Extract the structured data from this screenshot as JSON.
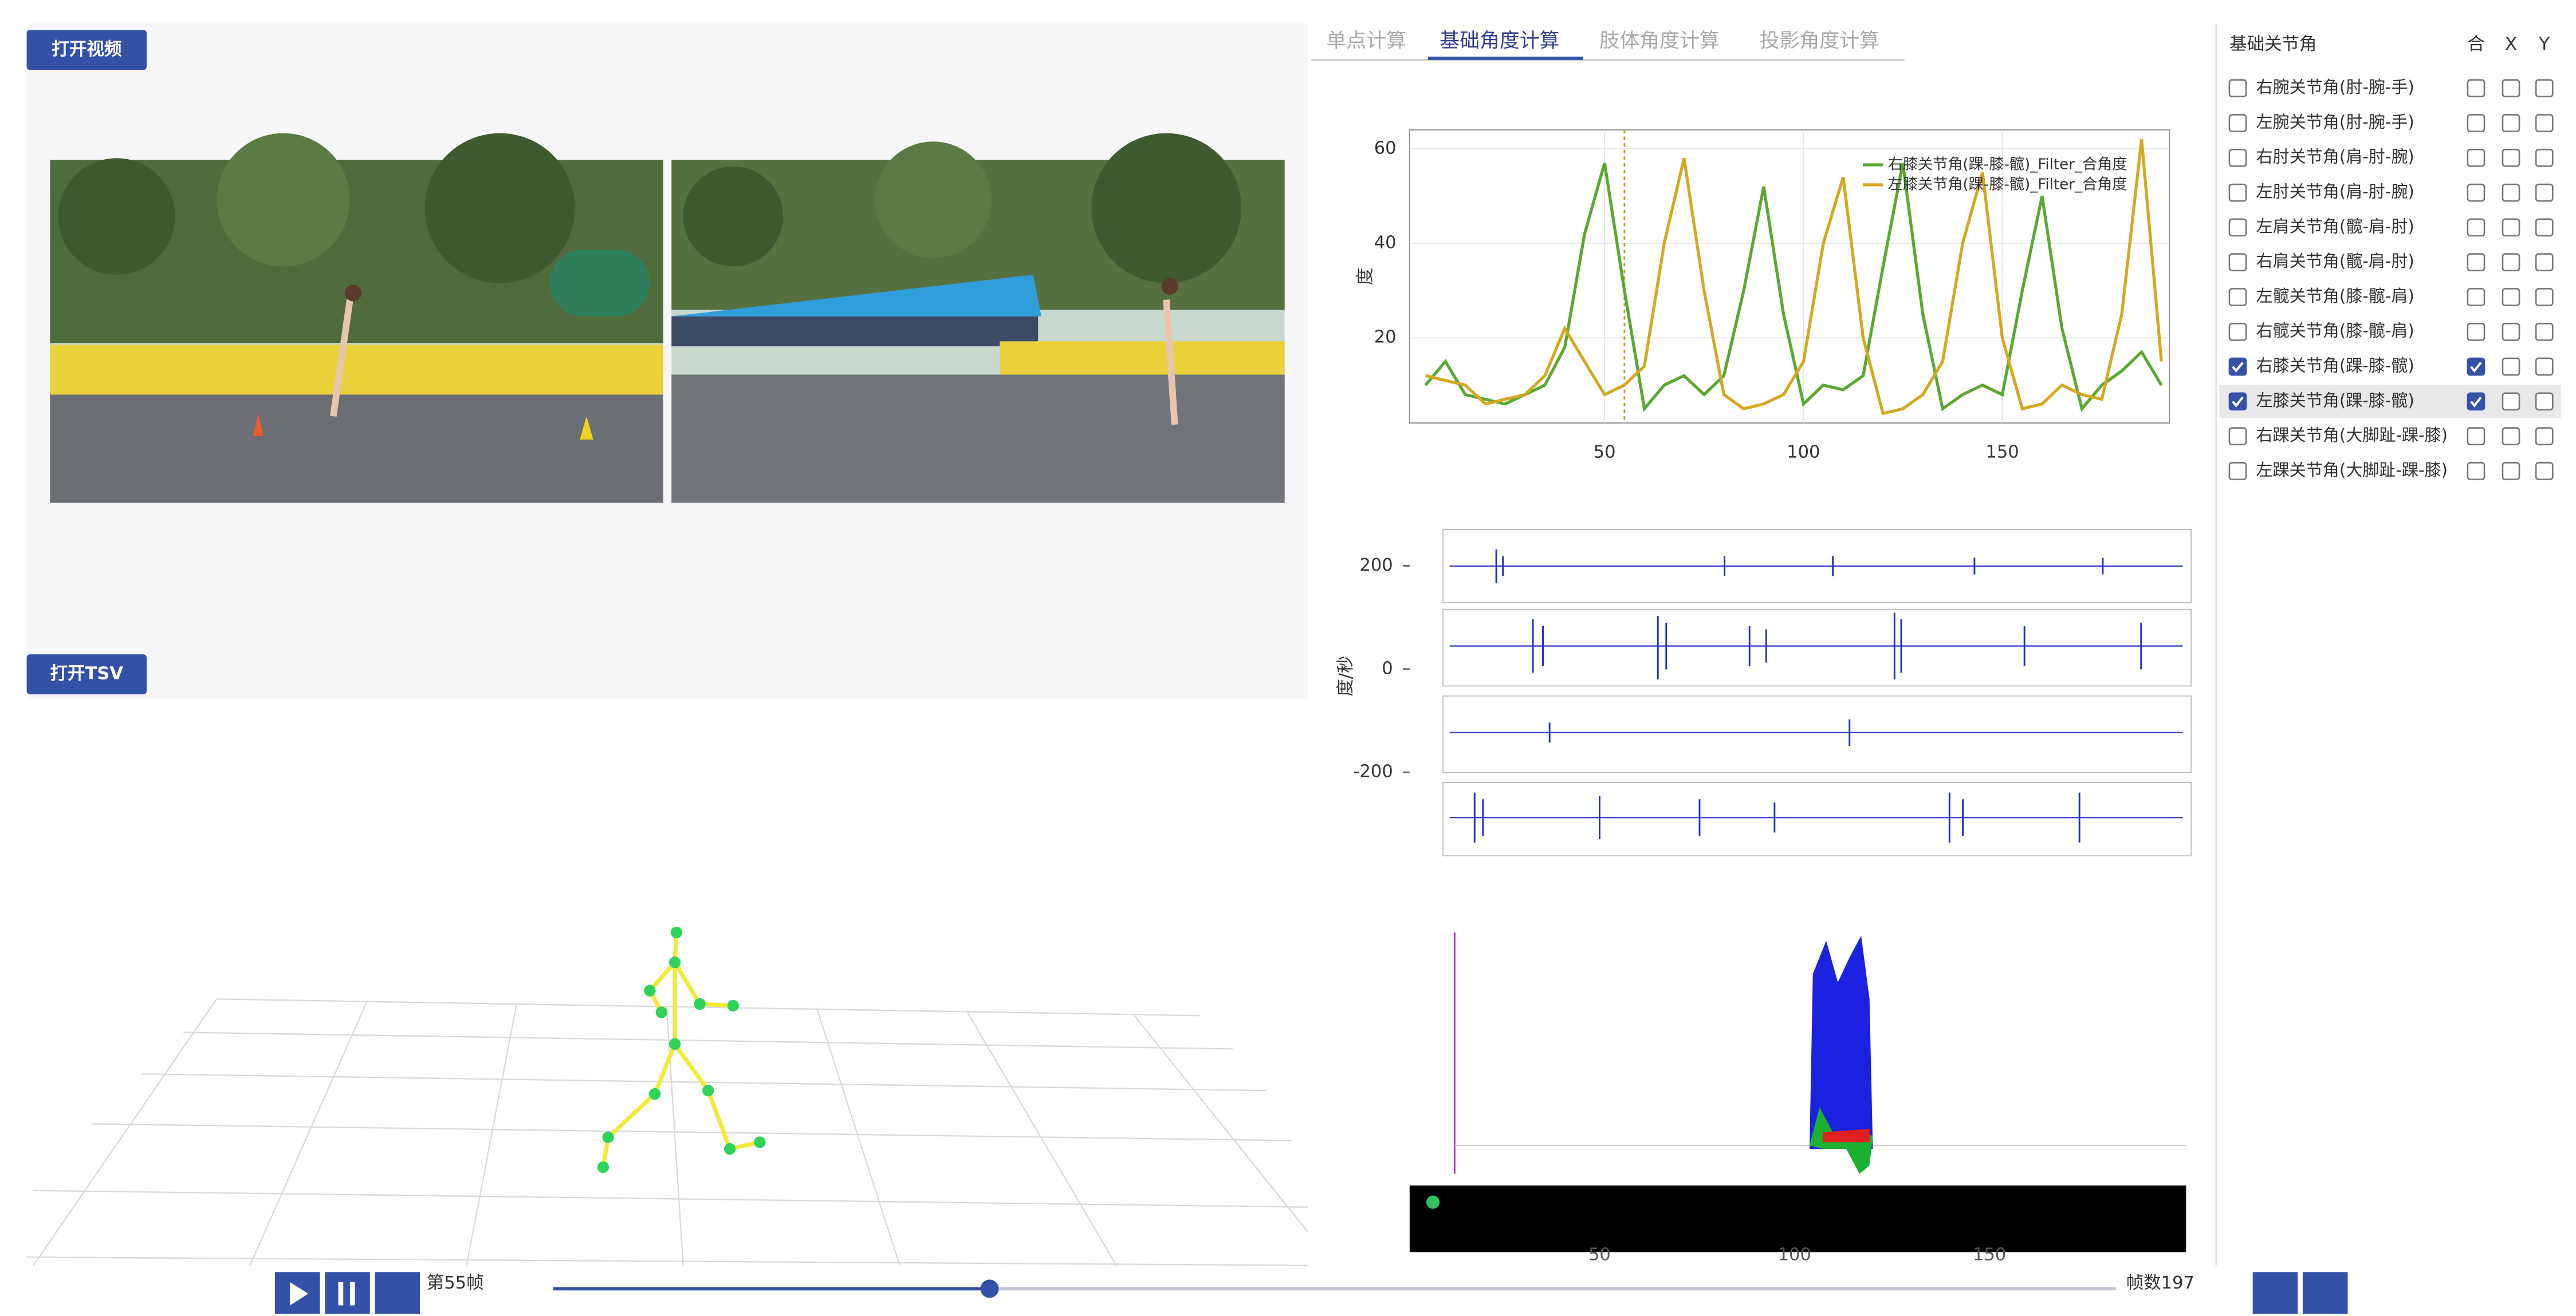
{
  "buttons": {
    "open_video": "打开视频",
    "open_tsv": "打开TSV"
  },
  "tabs": {
    "items": [
      "单点计算",
      "基础角度计算",
      "肢体角度计算",
      "投影角度计算"
    ],
    "active": 1
  },
  "angle_chart": {
    "type": "line",
    "y_label": "度",
    "x": [
      5,
      10,
      15,
      20,
      25,
      30,
      35,
      40,
      45,
      50,
      55,
      60,
      65,
      70,
      75,
      80,
      85,
      90,
      95,
      100,
      105,
      110,
      115,
      120,
      125,
      130,
      135,
      140,
      145,
      150,
      155,
      160,
      165,
      170,
      175,
      180,
      185,
      190
    ],
    "series": [
      {
        "name": "右膝关节角(踝-膝-髋)_Filter_合角度",
        "color": "#5aa832",
        "values": [
          10,
          15,
          8,
          7,
          6,
          8,
          10,
          18,
          42,
          57,
          30,
          5,
          10,
          12,
          8,
          12,
          30,
          52,
          25,
          6,
          10,
          9,
          12,
          35,
          57,
          25,
          5,
          8,
          10,
          8,
          30,
          50,
          22,
          5,
          10,
          13,
          17,
          10
        ]
      },
      {
        "name": "左膝关节角(踝-膝-髋)_Filter_合角度",
        "color": "#d4a821",
        "values": [
          12,
          11,
          10,
          6,
          7,
          8,
          12,
          22,
          15,
          8,
          10,
          14,
          40,
          58,
          30,
          8,
          5,
          6,
          8,
          15,
          40,
          54,
          20,
          4,
          5,
          8,
          15,
          40,
          55,
          20,
          5,
          6,
          10,
          8,
          7,
          25,
          62,
          15
        ]
      }
    ],
    "cursor_x": 55,
    "xlim": [
      1,
      192
    ],
    "ylim": [
      2,
      64
    ],
    "xticks": [
      50,
      100,
      150
    ],
    "yticks": [
      20,
      40,
      60
    ],
    "grid": true
  },
  "velocity_chart": {
    "y_label": "度/秒",
    "ylim": [
      -365,
      280
    ],
    "yticks": [
      200,
      0,
      -200
    ]
  },
  "spectrum": {
    "xtick_labels": [
      "50",
      "100",
      "150"
    ]
  },
  "joint_panel": {
    "header": "基础关节角",
    "columns": [
      "合",
      "X",
      "Y"
    ],
    "rows": [
      {
        "label": "右腕关节角(肘-腕-手)",
        "checked": false,
        "he": false,
        "x": false,
        "y": false
      },
      {
        "label": "左腕关节角(肘-腕-手)",
        "checked": false,
        "he": false,
        "x": false,
        "y": false
      },
      {
        "label": "右肘关节角(肩-肘-腕)",
        "checked": false,
        "he": false,
        "x": false,
        "y": false
      },
      {
        "label": "左肘关节角(肩-肘-腕)",
        "checked": false,
        "he": false,
        "x": false,
        "y": false
      },
      {
        "label": "左肩关节角(髋-肩-肘)",
        "checked": false,
        "he": false,
        "x": false,
        "y": false
      },
      {
        "label": "右肩关节角(髋-肩-肘)",
        "checked": false,
        "he": false,
        "x": false,
        "y": false
      },
      {
        "label": "左髋关节角(膝-髋-肩)",
        "checked": false,
        "he": false,
        "x": false,
        "y": false
      },
      {
        "label": "右髋关节角(膝-髋-肩)",
        "checked": false,
        "he": false,
        "x": false,
        "y": false
      },
      {
        "label": "右膝关节角(踝-膝-髋)",
        "checked": true,
        "he": true,
        "x": false,
        "y": false
      },
      {
        "label": "左膝关节角(踝-膝-髋)",
        "checked": true,
        "he": true,
        "x": false,
        "y": false
      },
      {
        "label": "右踝关节角(大脚趾-踝-膝)",
        "checked": false,
        "he": false,
        "x": false,
        "y": false
      },
      {
        "label": "左踝关节角(大脚趾-踝-膝)",
        "checked": false,
        "he": false,
        "x": false,
        "y": false
      }
    ],
    "selected_row": 9
  },
  "playback": {
    "frame_label": "第55帧",
    "total_label": "帧数197",
    "frame": 55,
    "total_frames": 197
  }
}
